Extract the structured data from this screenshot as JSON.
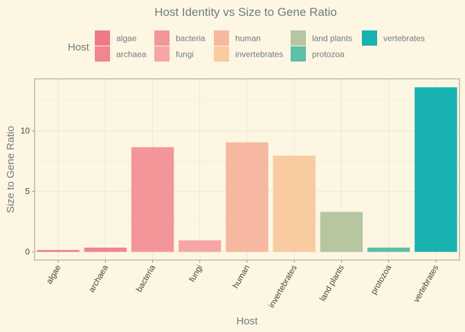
{
  "chart_data": {
    "type": "bar",
    "title": "Host Identity vs Size to Gene Ratio",
    "xlabel": "Host",
    "ylabel": "Size to Gene Ratio",
    "legend_title": "Host",
    "legend_position": "top",
    "grid": true,
    "categories": [
      "algae",
      "archaea",
      "bacteria",
      "fungi",
      "human",
      "invertebrates",
      "land plants",
      "protozoa",
      "vertebrates"
    ],
    "values": [
      0.15,
      0.35,
      8.65,
      0.95,
      9.05,
      7.95,
      3.3,
      0.35,
      13.6
    ],
    "colors": [
      "#ee7a87",
      "#f0868f",
      "#f2969a",
      "#f6a6a6",
      "#f6b8a0",
      "#f8cba0",
      "#b5c6a0",
      "#5cbfa7",
      "#18b2b0"
    ],
    "ylim": [
      -0.68,
      14.3
    ],
    "yticks": [
      0,
      5,
      10
    ],
    "legend_order": [
      "algae",
      "archaea",
      "bacteria",
      "fungi",
      "human",
      "invertebrates",
      "land plants",
      "protozoa",
      "vertebrates"
    ]
  },
  "theme": {
    "background": "#fdf6e3",
    "grid_color": "#f0e8d4",
    "axis_color": "#9a9a9a",
    "text_color": "#6e7b84",
    "tick_text_color": "#444444"
  }
}
